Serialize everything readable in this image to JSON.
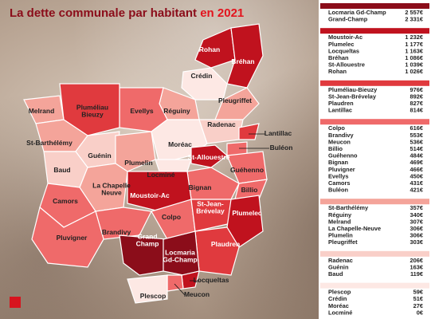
{
  "header": {
    "title": "La dette communale par habitant",
    "title_year": "en 2021"
  },
  "map": {
    "labels": [
      [
        "Rohan"
      ],
      [
        "Bréhan"
      ],
      [
        "Crédin"
      ],
      [
        "Melrand"
      ],
      [
        "Pluméliau",
        "Bieuzy"
      ],
      [
        "Evellys"
      ],
      [
        "Réguiny"
      ],
      [
        "Pleugriffet"
      ],
      [
        "Radenac"
      ],
      [
        "Lantillac"
      ],
      [
        "St-Barthélémy"
      ],
      [
        "Moréac"
      ],
      [
        "Buléon"
      ],
      [
        "Guénin"
      ],
      [
        "St-Allouestre"
      ],
      [
        "Baud"
      ],
      [
        "Plumelin"
      ],
      [
        "Locminé"
      ],
      [
        "Guéhenno"
      ],
      [
        "La Chapelle",
        "Neuve"
      ],
      [
        "Billio"
      ],
      [
        "Camors"
      ],
      [
        "Moustoir-Ac"
      ],
      [
        "Bignan"
      ],
      [
        "St-Jean-",
        "Brévelay"
      ],
      [
        "Colpo"
      ],
      [
        "Plumelec"
      ],
      [
        "Brandivy"
      ],
      [
        "Pluvigner"
      ],
      [
        "Grand",
        "Champ"
      ],
      [
        "Locmaria",
        "Gd-Champ"
      ],
      [
        "Plaudren"
      ],
      [
        "Locqueltas"
      ],
      [
        "Meucon"
      ],
      [
        "Plescop"
      ]
    ]
  },
  "table": {
    "groups": [
      {
        "rows": [
          [
            "Locmaria Gd-Champ",
            "2 557€"
          ],
          [
            "Grand-Champ",
            "2 331€"
          ]
        ]
      },
      {
        "rows": [
          [
            "Moustoir-Ac",
            "1 232€"
          ],
          [
            "Plumelec",
            "1 177€"
          ],
          [
            "Locqueltas",
            "1 163€"
          ],
          [
            "Bréhan",
            "1 086€"
          ],
          [
            "St-Allouestre",
            "1 039€"
          ],
          [
            "Rohan",
            "1 026€"
          ]
        ]
      },
      {
        "rows": [
          [
            "Pluméliau-Bieuzy",
            "976€"
          ],
          [
            "St-Jean-Brévelay",
            "892€"
          ],
          [
            "Plaudren",
            "827€"
          ],
          [
            "Lantillac",
            "814€"
          ]
        ]
      },
      {
        "rows": [
          [
            "Colpo",
            "616€"
          ],
          [
            "Brandivy",
            "553€"
          ],
          [
            "Meucon",
            "536€"
          ],
          [
            "Billio",
            "514€"
          ],
          [
            "Guéhenno",
            "484€"
          ],
          [
            "Bignan",
            "469€"
          ],
          [
            "Pluvigner",
            "466€"
          ],
          [
            "Evellys",
            "450€"
          ],
          [
            "Camors",
            "431€"
          ],
          [
            "Buléon",
            "421€"
          ]
        ]
      },
      {
        "rows": [
          [
            "St-Barthélémy",
            "357€"
          ],
          [
            "Réguiny",
            "340€"
          ],
          [
            "Melrand",
            "307€"
          ],
          [
            "La Chapelle-Neuve",
            "306€"
          ],
          [
            "Plumelin",
            "306€"
          ],
          [
            "Pleugriffet",
            "303€"
          ]
        ]
      },
      {
        "rows": [
          [
            "Radenac",
            "206€"
          ],
          [
            "Guénin",
            "163€"
          ],
          [
            "Baud",
            "119€"
          ]
        ]
      },
      {
        "rows": [
          [
            "Plescop",
            "59€"
          ],
          [
            "Crédin",
            "51€"
          ],
          [
            "Moréac",
            "27€"
          ],
          [
            "Locminé",
            "0€"
          ]
        ]
      }
    ]
  }
}
